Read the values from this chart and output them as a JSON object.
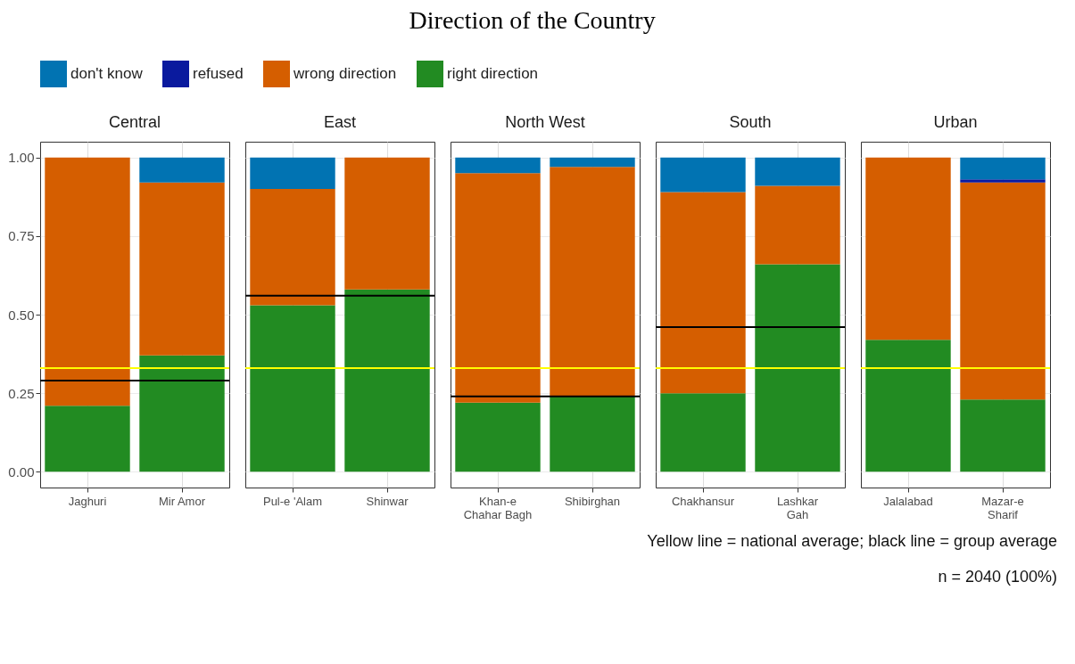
{
  "chart_data": [
    {
      "type": "bar",
      "title": "Central",
      "stacked": true,
      "legend": "top",
      "grid": true,
      "categories": [
        "Jaghuri",
        "Mir Amor"
      ],
      "ylim": [
        -0.05,
        1.05
      ],
      "yticks": [
        {
          "value": 0,
          "label": "0.00"
        },
        {
          "value": 0.25,
          "label": "0.25"
        },
        {
          "value": 0.5,
          "label": "0.50"
        },
        {
          "value": 0.75,
          "label": "0.75"
        },
        {
          "value": 1,
          "label": "1.00"
        }
      ],
      "series": [
        {
          "name": "right direction",
          "color": "#228b22",
          "values": [
            0.21,
            0.37
          ]
        },
        {
          "name": "wrong direction",
          "color": "#d55e00",
          "values": [
            0.79,
            0.55
          ]
        },
        {
          "name": "don't know",
          "color": "#0173b2",
          "values": [
            null,
            0.08
          ]
        }
      ],
      "ref_lines": [
        {
          "axis": "y",
          "value": 0.33,
          "color": "#ffff00"
        },
        {
          "axis": "y",
          "value": 0.29,
          "color": "#000000"
        }
      ],
      "annotations": [
        "Direction of the Country"
      ]
    },
    {
      "type": "bar",
      "title": "East",
      "stacked": true,
      "legend": "top",
      "grid": true,
      "tick_labels": "x",
      "categories": [
        "Pul-e 'Alam",
        "Shinwar"
      ],
      "ylim": [
        -0.05,
        1.05
      ],
      "yticks": [
        0,
        0.25,
        0.5,
        0.75,
        1
      ],
      "series": [
        {
          "name": "right direction",
          "color": "#228b22",
          "values": [
            0.53,
            0.58
          ]
        },
        {
          "name": "wrong direction",
          "color": "#d55e00",
          "values": [
            0.37,
            0.42
          ]
        },
        {
          "name": "don't know",
          "color": "#0173b2",
          "values": [
            0.1,
            null
          ]
        }
      ],
      "ref_lines": [
        {
          "axis": "y",
          "value": 0.33,
          "color": "#ffff00"
        },
        {
          "axis": "y",
          "value": 0.56,
          "color": "#000000"
        }
      ]
    },
    {
      "type": "bar",
      "title": "North West",
      "stacked": true,
      "legend": "top",
      "grid": true,
      "tick_labels": "x",
      "categories": [
        "Khan-e\nChahar Bagh",
        "Shibirghan"
      ],
      "ylim": [
        -0.05,
        1.05
      ],
      "yticks": [
        0,
        0.25,
        0.5,
        0.75,
        1
      ],
      "series": [
        {
          "name": "right direction",
          "color": "#228b22",
          "values": [
            0.22,
            0.24
          ]
        },
        {
          "name": "wrong direction",
          "color": "#d55e00",
          "values": [
            0.73,
            0.73
          ]
        },
        {
          "name": "don't know",
          "color": "#0173b2",
          "values": [
            0.05,
            0.03
          ]
        }
      ],
      "ref_lines": [
        {
          "axis": "y",
          "value": 0.33,
          "color": "#ffff00"
        },
        {
          "axis": "y",
          "value": 0.24,
          "color": "#000000"
        }
      ]
    },
    {
      "type": "bar",
      "title": "South",
      "stacked": true,
      "legend": "top",
      "grid": true,
      "tick_labels": "x",
      "categories": [
        "Chakhansur",
        "Lashkar\nGah"
      ],
      "ylim": [
        -0.05,
        1.05
      ],
      "yticks": [
        0,
        0.25,
        0.5,
        0.75,
        1
      ],
      "series": [
        {
          "name": "right direction",
          "color": "#228b22",
          "values": [
            0.25,
            0.66
          ]
        },
        {
          "name": "wrong direction",
          "color": "#d55e00",
          "values": [
            0.64,
            0.25
          ]
        },
        {
          "name": "don't know",
          "color": "#0173b2",
          "values": [
            0.11,
            0.09
          ]
        }
      ],
      "ref_lines": [
        {
          "axis": "y",
          "value": 0.33,
          "color": "#ffff00"
        },
        {
          "axis": "y",
          "value": 0.46,
          "color": "#000000"
        }
      ]
    },
    {
      "type": "bar",
      "title": "Urban",
      "stacked": true,
      "legend": "top",
      "grid": true,
      "tick_labels": "x",
      "categories": [
        "Jalalabad",
        "Mazar-e\nSharif"
      ],
      "ylim": [
        -0.05,
        1.05
      ],
      "yticks": [
        0,
        0.25,
        0.5,
        0.75,
        1
      ],
      "series": [
        {
          "name": "right direction",
          "color": "#228b22",
          "values": [
            0.42,
            0.23
          ]
        },
        {
          "name": "wrong direction",
          "color": "#d55e00",
          "values": [
            0.58,
            0.69
          ]
        },
        {
          "name": "refused",
          "color": "#0a1a9e",
          "values": [
            null,
            0.01
          ]
        },
        {
          "name": "don't know",
          "color": "#0173b2",
          "values": [
            null,
            0.07
          ]
        }
      ],
      "ref_lines": [
        {
          "axis": "y",
          "value": 0.33,
          "color": "#ffff00"
        }
      ],
      "annotations": [
        "Yellow line = national average; black line = group average",
        "n = 2040 (100%)"
      ]
    }
  ]
}
